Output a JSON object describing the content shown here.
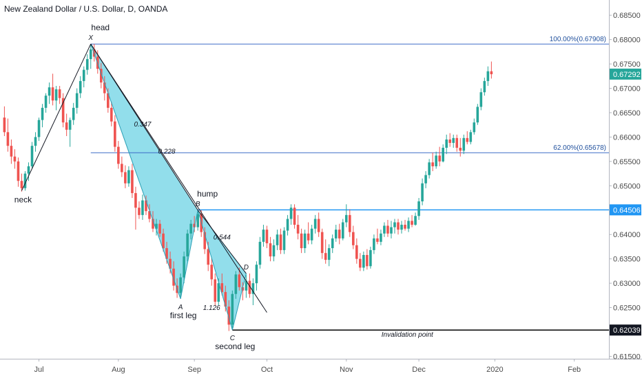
{
  "header": {
    "title": "New Zealand Dollar / U.S. Dollar, D, OANDA"
  },
  "colors": {
    "up": "#26a69a",
    "down": "#ef5350",
    "pattern_fill": "#7fd8e8",
    "fib_line": "#3c6bc7",
    "level_line": "#2196f3",
    "invalidation": "#000000",
    "price_tag": "#26a69a",
    "level_tag": "#2196f3"
  },
  "chart_data": {
    "type": "candlestick",
    "title": "New Zealand Dollar / U.S. Dollar, D, OANDA",
    "ylim": [
      0.6145,
      0.687
    ],
    "y_ticks": [
      "0.68500",
      "0.68000",
      "0.67500",
      "0.67000",
      "0.66500",
      "0.66000",
      "0.65500",
      "0.65000",
      "0.64500",
      "0.64000",
      "0.63500",
      "0.63000",
      "0.62500",
      "0.62000",
      "0.61500"
    ],
    "x_labels": [
      {
        "label": "Jul",
        "bar": 10
      },
      {
        "label": "Aug",
        "bar": 33
      },
      {
        "label": "Sep",
        "bar": 55
      },
      {
        "label": "Oct",
        "bar": 76
      },
      {
        "label": "Nov",
        "bar": 99
      },
      {
        "label": "Dec",
        "bar": 120
      },
      {
        "label": "2020",
        "bar": 142
      },
      {
        "label": "Feb",
        "bar": 165
      }
    ],
    "bar_count": 176,
    "candles": [
      [
        0,
        0.664,
        0.6663,
        0.6602,
        0.661
      ],
      [
        1,
        0.661,
        0.6638,
        0.657,
        0.6582
      ],
      [
        2,
        0.6582,
        0.6595,
        0.6545,
        0.656
      ],
      [
        3,
        0.656,
        0.6575,
        0.6535,
        0.655
      ],
      [
        4,
        0.655,
        0.6558,
        0.6498,
        0.651
      ],
      [
        5,
        0.651,
        0.6525,
        0.6488,
        0.6495
      ],
      [
        6,
        0.6495,
        0.653,
        0.649,
        0.6525
      ],
      [
        7,
        0.6525,
        0.6548,
        0.651,
        0.654
      ],
      [
        8,
        0.654,
        0.659,
        0.6535,
        0.6582
      ],
      [
        9,
        0.6582,
        0.661,
        0.657,
        0.66
      ],
      [
        10,
        0.66,
        0.664,
        0.6592,
        0.6635
      ],
      [
        11,
        0.6635,
        0.6668,
        0.662,
        0.666
      ],
      [
        12,
        0.666,
        0.669,
        0.665,
        0.6685
      ],
      [
        13,
        0.6685,
        0.6712,
        0.6668,
        0.6702
      ],
      [
        14,
        0.6702,
        0.673,
        0.6665,
        0.6675
      ],
      [
        15,
        0.6675,
        0.6705,
        0.6655,
        0.6698
      ],
      [
        16,
        0.6698,
        0.6705,
        0.6668,
        0.668
      ],
      [
        17,
        0.668,
        0.669,
        0.662,
        0.663
      ],
      [
        18,
        0.663,
        0.6648,
        0.6602,
        0.6615
      ],
      [
        19,
        0.6615,
        0.664,
        0.658,
        0.6635
      ],
      [
        20,
        0.6635,
        0.667,
        0.6625,
        0.666
      ],
      [
        21,
        0.666,
        0.67,
        0.6648,
        0.669
      ],
      [
        22,
        0.669,
        0.6725,
        0.668,
        0.6715
      ],
      [
        23,
        0.6715,
        0.6745,
        0.6702,
        0.6738
      ],
      [
        24,
        0.6738,
        0.677,
        0.6728,
        0.676
      ],
      [
        25,
        0.676,
        0.679,
        0.674,
        0.678
      ],
      [
        26,
        0.678,
        0.6791,
        0.6755,
        0.6765
      ],
      [
        27,
        0.6765,
        0.6778,
        0.673,
        0.674
      ],
      [
        28,
        0.674,
        0.6752,
        0.67,
        0.6712
      ],
      [
        29,
        0.6712,
        0.6725,
        0.6675,
        0.669
      ],
      [
        30,
        0.669,
        0.67,
        0.665,
        0.666
      ],
      [
        31,
        0.666,
        0.6672,
        0.6622,
        0.6632
      ],
      [
        32,
        0.6632,
        0.6645,
        0.657,
        0.658
      ],
      [
        33,
        0.658,
        0.6592,
        0.6535,
        0.6545
      ],
      [
        34,
        0.6545,
        0.656,
        0.6518,
        0.6528
      ],
      [
        35,
        0.6528,
        0.6542,
        0.6495,
        0.6505
      ],
      [
        36,
        0.6505,
        0.654,
        0.6498,
        0.6532
      ],
      [
        37,
        0.6532,
        0.6545,
        0.6475,
        0.6485
      ],
      [
        38,
        0.6485,
        0.6498,
        0.641,
        0.6455
      ],
      [
        39,
        0.6455,
        0.6468,
        0.6432,
        0.644
      ],
      [
        40,
        0.644,
        0.6482,
        0.643,
        0.647
      ],
      [
        41,
        0.647,
        0.648,
        0.644,
        0.6448
      ],
      [
        42,
        0.6448,
        0.6462,
        0.6425,
        0.6432
      ],
      [
        43,
        0.6432,
        0.6448,
        0.6405,
        0.6412
      ],
      [
        44,
        0.6412,
        0.6432,
        0.6398,
        0.6422
      ],
      [
        45,
        0.6422,
        0.643,
        0.6395,
        0.6402
      ],
      [
        46,
        0.6402,
        0.6412,
        0.6365,
        0.6372
      ],
      [
        47,
        0.6372,
        0.6385,
        0.634,
        0.635
      ],
      [
        48,
        0.635,
        0.6365,
        0.632,
        0.633
      ],
      [
        49,
        0.633,
        0.6345,
        0.6285,
        0.6295
      ],
      [
        50,
        0.6295,
        0.631,
        0.627,
        0.628
      ],
      [
        51,
        0.628,
        0.632,
        0.6272,
        0.6312
      ],
      [
        52,
        0.6312,
        0.6365,
        0.63,
        0.6355
      ],
      [
        53,
        0.6355,
        0.641,
        0.6345,
        0.6402
      ],
      [
        54,
        0.6402,
        0.643,
        0.639,
        0.6422
      ],
      [
        55,
        0.6422,
        0.6438,
        0.6405,
        0.6415
      ],
      [
        56,
        0.6415,
        0.645,
        0.6408,
        0.6442
      ],
      [
        57,
        0.6442,
        0.645,
        0.6395,
        0.6405
      ],
      [
        58,
        0.6405,
        0.6415,
        0.636,
        0.637
      ],
      [
        59,
        0.637,
        0.6385,
        0.6325,
        0.6338
      ],
      [
        60,
        0.6338,
        0.6352,
        0.6295,
        0.6308
      ],
      [
        61,
        0.6308,
        0.632,
        0.6255,
        0.6262
      ],
      [
        62,
        0.6262,
        0.631,
        0.6255,
        0.63
      ],
      [
        63,
        0.63,
        0.632,
        0.6275,
        0.6282
      ],
      [
        64,
        0.6282,
        0.6295,
        0.6242,
        0.6252
      ],
      [
        65,
        0.6252,
        0.6265,
        0.6202,
        0.6215
      ],
      [
        66,
        0.6215,
        0.6285,
        0.6208,
        0.6278
      ],
      [
        67,
        0.6278,
        0.6325,
        0.6268,
        0.6318
      ],
      [
        68,
        0.6318,
        0.6332,
        0.6285,
        0.6292
      ],
      [
        69,
        0.6292,
        0.6302,
        0.6265,
        0.6285
      ],
      [
        70,
        0.6285,
        0.6318,
        0.627,
        0.6305
      ],
      [
        71,
        0.6305,
        0.632,
        0.627,
        0.6278
      ],
      [
        72,
        0.6278,
        0.631,
        0.6255,
        0.63
      ],
      [
        73,
        0.63,
        0.6345,
        0.6285,
        0.6338
      ],
      [
        74,
        0.6338,
        0.6395,
        0.633,
        0.6385
      ],
      [
        75,
        0.6385,
        0.642,
        0.6375,
        0.641
      ],
      [
        76,
        0.641,
        0.6418,
        0.6372,
        0.6382
      ],
      [
        77,
        0.6382,
        0.6395,
        0.6345,
        0.6355
      ],
      [
        78,
        0.6355,
        0.639,
        0.6345,
        0.6378
      ],
      [
        79,
        0.6378,
        0.641,
        0.6368,
        0.64
      ],
      [
        80,
        0.64,
        0.6412,
        0.636,
        0.6368
      ],
      [
        81,
        0.6368,
        0.6415,
        0.636,
        0.6408
      ],
      [
        82,
        0.6408,
        0.644,
        0.6398,
        0.6432
      ],
      [
        83,
        0.6432,
        0.6462,
        0.642,
        0.6455
      ],
      [
        84,
        0.6455,
        0.6462,
        0.6412,
        0.642
      ],
      [
        85,
        0.642,
        0.644,
        0.639,
        0.6402
      ],
      [
        86,
        0.6402,
        0.6412,
        0.6362,
        0.6372
      ],
      [
        87,
        0.6372,
        0.641,
        0.6362,
        0.6402
      ],
      [
        88,
        0.6402,
        0.6425,
        0.638,
        0.6388
      ],
      [
        89,
        0.6388,
        0.642,
        0.638,
        0.6412
      ],
      [
        90,
        0.6412,
        0.644,
        0.6402,
        0.6432
      ],
      [
        91,
        0.6432,
        0.6445,
        0.6395,
        0.6405
      ],
      [
        92,
        0.6405,
        0.6412,
        0.635,
        0.6362
      ],
      [
        93,
        0.6362,
        0.639,
        0.634,
        0.6348
      ],
      [
        94,
        0.6348,
        0.638,
        0.6335,
        0.6372
      ],
      [
        95,
        0.6372,
        0.64,
        0.6362,
        0.6392
      ],
      [
        96,
        0.6392,
        0.642,
        0.6385,
        0.641
      ],
      [
        97,
        0.641,
        0.6422,
        0.638,
        0.6392
      ],
      [
        98,
        0.6392,
        0.6432,
        0.6388,
        0.6425
      ],
      [
        99,
        0.6425,
        0.6462,
        0.6415,
        0.644
      ],
      [
        100,
        0.644,
        0.6452,
        0.6395,
        0.6405
      ],
      [
        101,
        0.6405,
        0.6418,
        0.637,
        0.6378
      ],
      [
        102,
        0.6378,
        0.6392,
        0.634,
        0.635
      ],
      [
        103,
        0.635,
        0.6362,
        0.6325,
        0.6332
      ],
      [
        104,
        0.6332,
        0.6365,
        0.6325,
        0.6358
      ],
      [
        105,
        0.6358,
        0.637,
        0.6328,
        0.6335
      ],
      [
        106,
        0.6335,
        0.6375,
        0.633,
        0.6368
      ],
      [
        107,
        0.6368,
        0.64,
        0.636,
        0.6392
      ],
      [
        108,
        0.6392,
        0.6412,
        0.638,
        0.6385
      ],
      [
        109,
        0.6385,
        0.641,
        0.6378,
        0.6402
      ],
      [
        110,
        0.6402,
        0.6425,
        0.6395,
        0.6418
      ],
      [
        111,
        0.6418,
        0.643,
        0.6395,
        0.6402
      ],
      [
        112,
        0.6402,
        0.6428,
        0.6392,
        0.6415
      ],
      [
        113,
        0.6415,
        0.6432,
        0.6402,
        0.6425
      ],
      [
        114,
        0.6425,
        0.6432,
        0.64,
        0.641
      ],
      [
        115,
        0.641,
        0.6428,
        0.6402,
        0.642
      ],
      [
        116,
        0.642,
        0.643,
        0.6408,
        0.6412
      ],
      [
        117,
        0.6412,
        0.6435,
        0.6405,
        0.6428
      ],
      [
        118,
        0.6428,
        0.644,
        0.6415,
        0.642
      ],
      [
        119,
        0.642,
        0.6445,
        0.6418,
        0.6438
      ],
      [
        120,
        0.6438,
        0.6475,
        0.643,
        0.6468
      ],
      [
        121,
        0.6468,
        0.6515,
        0.646,
        0.6505
      ],
      [
        122,
        0.6505,
        0.653,
        0.6495,
        0.6522
      ],
      [
        123,
        0.6522,
        0.6555,
        0.6515,
        0.6548
      ],
      [
        124,
        0.6548,
        0.6568,
        0.653,
        0.654
      ],
      [
        125,
        0.654,
        0.657,
        0.6535,
        0.6562
      ],
      [
        126,
        0.6562,
        0.658,
        0.654,
        0.655
      ],
      [
        127,
        0.655,
        0.6585,
        0.6548,
        0.6578
      ],
      [
        128,
        0.6578,
        0.6605,
        0.6565,
        0.6595
      ],
      [
        129,
        0.6595,
        0.6608,
        0.658,
        0.6588
      ],
      [
        130,
        0.6588,
        0.6605,
        0.6578,
        0.6598
      ],
      [
        131,
        0.6598,
        0.6605,
        0.657,
        0.6578
      ],
      [
        132,
        0.6578,
        0.6598,
        0.656,
        0.6572
      ],
      [
        133,
        0.6572,
        0.6605,
        0.6565,
        0.6598
      ],
      [
        134,
        0.6598,
        0.6612,
        0.6585,
        0.659
      ],
      [
        135,
        0.659,
        0.6615,
        0.6585,
        0.661
      ],
      [
        136,
        0.661,
        0.6638,
        0.6605,
        0.663
      ],
      [
        137,
        0.663,
        0.6668,
        0.6625,
        0.6662
      ],
      [
        138,
        0.6662,
        0.67,
        0.6655,
        0.6692
      ],
      [
        139,
        0.6692,
        0.6722,
        0.6685,
        0.6715
      ],
      [
        140,
        0.6715,
        0.6745,
        0.6705,
        0.6735
      ],
      [
        141,
        0.6735,
        0.6755,
        0.672,
        0.6729
      ]
    ],
    "fib_levels": [
      {
        "label": "100.00%(0.67908)",
        "price": 0.67908,
        "x_start_bar": 25
      },
      {
        "label": "62.00%(0.65678)",
        "price": 0.65678,
        "x_start_bar": 25
      }
    ],
    "levels": [
      {
        "price": 0.64506,
        "label": "0.64506",
        "x_start_bar": 56
      },
      {
        "price": 0.62039,
        "label": "0.62039",
        "x_start_bar": 66,
        "text": "Invalidation point"
      }
    ],
    "current_price": {
      "value": 0.67292,
      "label": "0.67292"
    },
    "pattern_points": [
      {
        "name": "X",
        "bar": 25,
        "price": 0.6791,
        "caption": "head",
        "caption_pos": "above"
      },
      {
        "name": "A",
        "bar": 51,
        "price": 0.6268,
        "caption": "first leg",
        "caption_pos": "below"
      },
      {
        "name": "B",
        "bar": 56,
        "price": 0.645,
        "caption": "hump",
        "caption_pos": "above"
      },
      {
        "name": "C",
        "bar": 66,
        "price": 0.6204,
        "caption": "second leg",
        "caption_pos": "below"
      },
      {
        "name": "D",
        "bar": 70,
        "price": 0.632,
        "caption": "",
        "caption_pos": "above"
      }
    ],
    "neck": {
      "bar": 5,
      "price": 0.649,
      "caption": "neck"
    },
    "neck_line_to": {
      "bar": 25,
      "price": 0.6791
    },
    "extra_line": {
      "from_bar": 25,
      "from_price": 0.6791,
      "to_bar": 76,
      "to_price": 0.624
    },
    "ratios": [
      {
        "label": "0.347",
        "bar": 40,
        "price": 0.6622
      },
      {
        "label": "0.228",
        "bar": 47,
        "price": 0.6566
      },
      {
        "label": "0.544",
        "bar": 63,
        "price": 0.639
      },
      {
        "label": "1.126",
        "bar": 60,
        "price": 0.6245
      }
    ]
  }
}
